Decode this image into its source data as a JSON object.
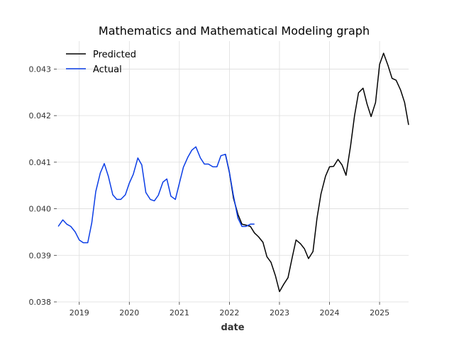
{
  "chart_data": {
    "type": "line",
    "title": "Mathematics and Mathematical Modeling graph",
    "xlabel": "date",
    "ylabel": "",
    "xlim": [
      2018.55,
      2025.58
    ],
    "ylim": [
      0.038,
      0.0356
    ],
    "x_ticks": [
      2019,
      2020,
      2021,
      2022,
      2023,
      2024,
      2025
    ],
    "x_tick_labels": [
      "2019",
      "2020",
      "2021",
      "2022",
      "2023",
      "2024",
      "2025"
    ],
    "y_ticks": [
      0.038,
      0.039,
      0.04,
      0.041,
      0.042,
      0.043
    ],
    "y_tick_labels": [
      "0.038",
      "0.039",
      "0.040",
      "0.041",
      "0.042",
      "0.043"
    ],
    "grid": true,
    "legend_position": "top-left",
    "series": [
      {
        "name": "Predicted",
        "color": "#000000",
        "x": [
          2021.92,
          2022.0,
          2022.08,
          2022.17,
          2022.25,
          2022.33,
          2022.42,
          2022.5,
          2022.58,
          2022.67,
          2022.75,
          2022.83,
          2022.92,
          2023.0,
          2023.08,
          2023.17,
          2023.25,
          2023.33,
          2023.42,
          2023.5,
          2023.58,
          2023.67,
          2023.75,
          2023.83,
          2023.92,
          2024.0,
          2024.08,
          2024.17,
          2024.25,
          2024.33,
          2024.42,
          2024.5,
          2024.58,
          2024.67,
          2024.75,
          2024.83,
          2024.92,
          2025.0,
          2025.08,
          2025.17,
          2025.25,
          2025.33,
          2025.42,
          2025.5,
          2025.58
        ],
        "y": [
          0.04117,
          0.04078,
          0.04023,
          0.03988,
          0.03967,
          0.03965,
          0.03962,
          0.03948,
          0.0394,
          0.03928,
          0.03897,
          0.03885,
          0.03856,
          0.03822,
          0.03837,
          0.03852,
          0.03893,
          0.03933,
          0.03925,
          0.03914,
          0.03893,
          0.03908,
          0.0398,
          0.04032,
          0.0407,
          0.0409,
          0.04091,
          0.04106,
          0.04094,
          0.04072,
          0.04135,
          0.042,
          0.04249,
          0.04259,
          0.04225,
          0.04198,
          0.04228,
          0.0431,
          0.04334,
          0.04307,
          0.0428,
          0.04276,
          0.04255,
          0.04228,
          0.0418
        ]
      },
      {
        "name": "Actual",
        "color": "#0a3de6",
        "x": [
          2018.58,
          2018.67,
          2018.75,
          2018.83,
          2018.92,
          2019.0,
          2019.08,
          2019.17,
          2019.25,
          2019.33,
          2019.42,
          2019.5,
          2019.58,
          2019.67,
          2019.75,
          2019.83,
          2019.92,
          2020.0,
          2020.08,
          2020.17,
          2020.25,
          2020.33,
          2020.42,
          2020.5,
          2020.58,
          2020.67,
          2020.75,
          2020.83,
          2020.92,
          2021.0,
          2021.08,
          2021.17,
          2021.25,
          2021.33,
          2021.42,
          2021.5,
          2021.58,
          2021.67,
          2021.75,
          2021.83,
          2021.92,
          2022.0,
          2022.08,
          2022.17,
          2022.25,
          2022.33,
          2022.42,
          2022.5
        ],
        "y": [
          0.03962,
          0.03976,
          0.03967,
          0.03962,
          0.0395,
          0.03933,
          0.03927,
          0.03927,
          0.0397,
          0.04037,
          0.04077,
          0.04097,
          0.0407,
          0.0403,
          0.0402,
          0.0402,
          0.0403,
          0.04055,
          0.04074,
          0.04109,
          0.04094,
          0.04035,
          0.0402,
          0.04017,
          0.04029,
          0.04057,
          0.04064,
          0.04027,
          0.0402,
          0.04055,
          0.04089,
          0.04111,
          0.04126,
          0.04133,
          0.04109,
          0.04096,
          0.04096,
          0.0409,
          0.0409,
          0.04114,
          0.04117,
          0.04078,
          0.04028,
          0.0398,
          0.03962,
          0.03962,
          0.03967,
          0.03967
        ]
      }
    ]
  }
}
